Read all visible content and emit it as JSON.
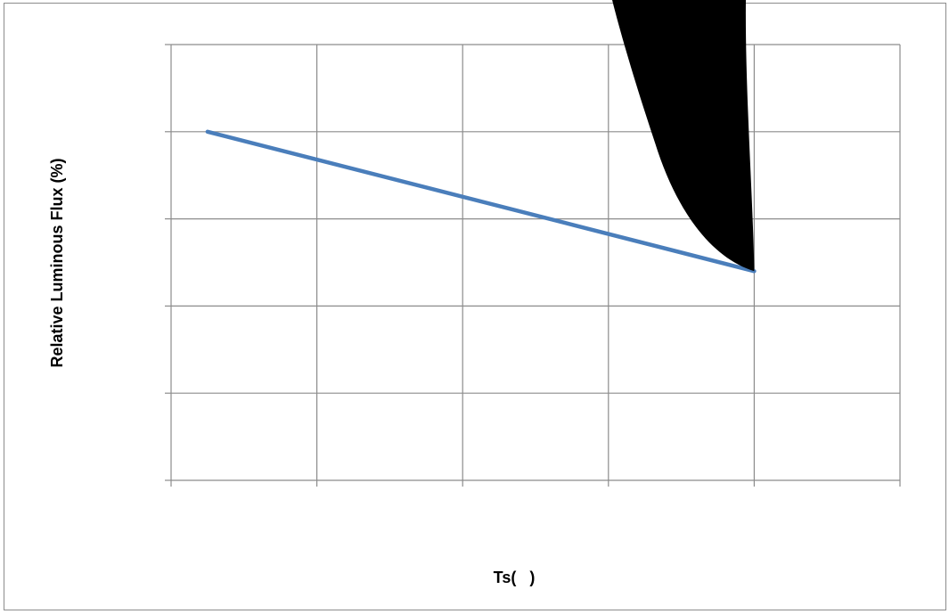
{
  "chart_data": {
    "type": "line",
    "title": "",
    "xlabel": "Ts(   )",
    "ylabel": "Relative Luminous Flux (%)",
    "x_divisions": 5,
    "y_divisions": 5,
    "xlim": [
      0,
      5
    ],
    "ylim": [
      0,
      5
    ],
    "grid": true,
    "legend": "none",
    "series": [
      {
        "color": "#4a7ebb",
        "x": [
          0.25,
          4.0
        ],
        "y": [
          4.0,
          2.4
        ]
      }
    ],
    "annotation": {
      "type": "black-filled-shape",
      "color": "#000000"
    },
    "colors": {
      "grid": "#8c8c8c",
      "frame": "#8c8c8c",
      "line": "#4a7ebb",
      "blot": "#000000"
    }
  }
}
